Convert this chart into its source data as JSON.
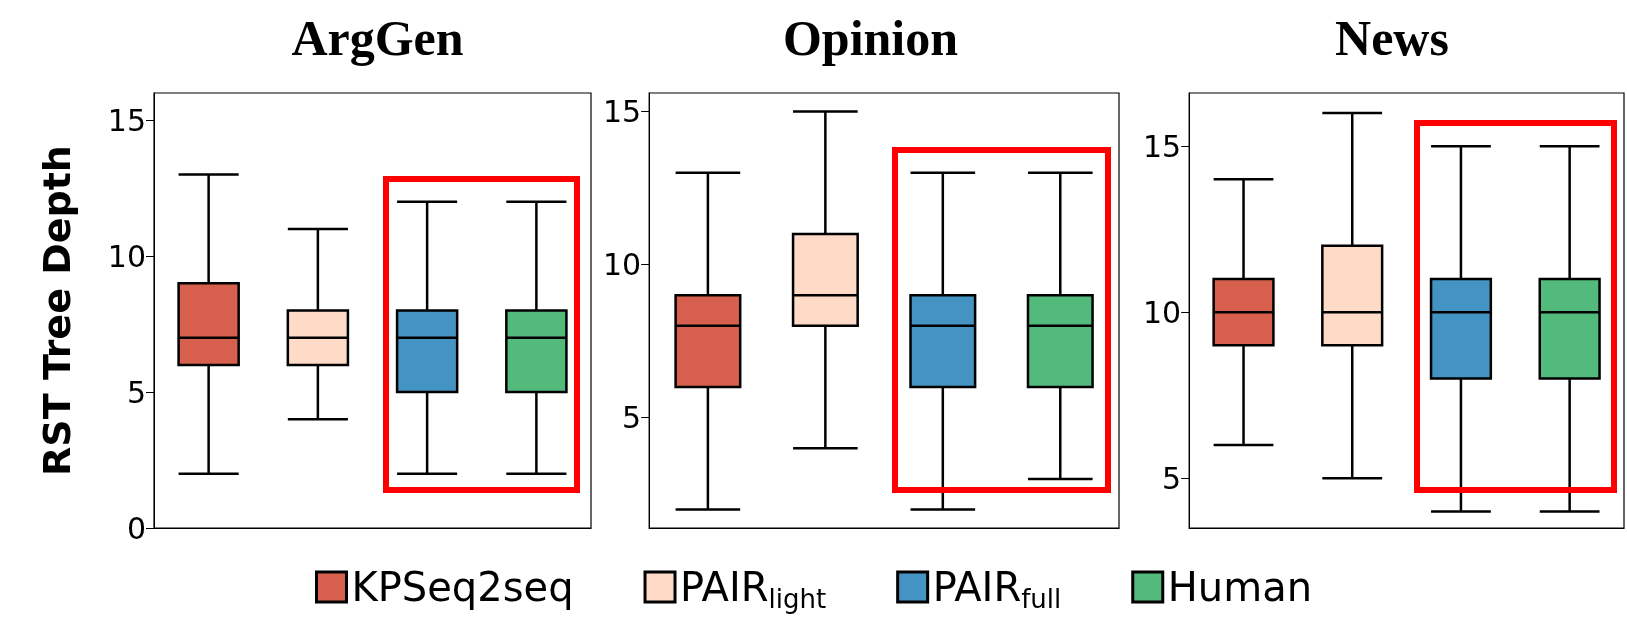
{
  "chart_data": [
    {
      "type": "box",
      "title": "ArgGen",
      "ylabel": "RST Tree Depth",
      "categories": [
        null,
        null,
        null,
        null
      ],
      "ylim": [
        0,
        16
      ],
      "yticks": [
        0,
        5,
        10,
        15
      ],
      "tick_labels": "y",
      "grid": false,
      "legend": "bottom",
      "series": [
        {
          "name": "KPSeq2seq",
          "color": "#d6604d",
          "boxes": [
            {
              "low": 2,
              "q1": 6,
              "median": 7,
              "q3": 9,
              "high": 13
            },
            null,
            null,
            null
          ]
        },
        {
          "name": "PAIR$_{light}$",
          "color": "#fddbc7",
          "boxes": [
            null,
            {
              "low": 4,
              "q1": 6,
              "median": 7,
              "q3": 8,
              "high": 11
            },
            null,
            null
          ]
        },
        {
          "name": "PAIR$_{full}$",
          "color": "#4393c3",
          "boxes": [
            null,
            null,
            {
              "low": 2,
              "q1": 5,
              "median": 7,
              "q3": 8,
              "high": 12
            },
            null
          ]
        },
        {
          "name": "Human",
          "color": "#52bb7c",
          "boxes": [
            null,
            null,
            null,
            {
              "low": 2,
              "q1": 5,
              "median": 7,
              "q3": 8,
              "high": 12
            }
          ]
        }
      ]
    },
    {
      "type": "box",
      "title": "Opinion",
      "categories": [
        null,
        null,
        null,
        null
      ],
      "ylim": [
        1.4,
        15.6
      ],
      "yticks": [
        5,
        10,
        15
      ],
      "tick_labels": "y",
      "grid": false,
      "series": [
        {
          "color": "#d6604d",
          "boxes": [
            {
              "low": 2,
              "q1": 6,
              "median": 8,
              "q3": 9,
              "high": 13
            },
            null,
            null,
            null
          ]
        },
        {
          "color": "#fddbc7",
          "boxes": [
            null,
            {
              "low": 4,
              "q1": 8,
              "median": 9,
              "q3": 11,
              "high": 15
            },
            null,
            null
          ]
        },
        {
          "color": "#4393c3",
          "boxes": [
            null,
            null,
            {
              "low": 2,
              "q1": 6,
              "median": 8,
              "q3": 9,
              "high": 13
            },
            null
          ]
        },
        {
          "color": "#52bb7c",
          "boxes": [
            null,
            null,
            null,
            {
              "low": 3,
              "q1": 6,
              "median": 8,
              "q3": 9,
              "high": 13
            }
          ]
        }
      ]
    },
    {
      "type": "box",
      "title": "News",
      "categories": [
        null,
        null,
        null,
        null
      ],
      "ylim": [
        3.5,
        16.6
      ],
      "yticks": [
        5,
        10,
        15
      ],
      "tick_labels": "y",
      "grid": false,
      "series": [
        {
          "color": "#d6604d",
          "boxes": [
            {
              "low": 6,
              "q1": 9,
              "median": 10,
              "q3": 11,
              "high": 14
            },
            null,
            null,
            null
          ]
        },
        {
          "color": "#fddbc7",
          "boxes": [
            null,
            {
              "low": 5,
              "q1": 9,
              "median": 10,
              "q3": 12,
              "high": 16
            },
            null,
            null
          ]
        },
        {
          "color": "#4393c3",
          "boxes": [
            null,
            null,
            {
              "low": 4,
              "q1": 8,
              "median": 10,
              "q3": 11,
              "high": 15
            },
            null
          ]
        },
        {
          "color": "#52bb7c",
          "boxes": [
            null,
            null,
            null,
            {
              "low": 4,
              "q1": 8,
              "median": 10,
              "q3": 11,
              "high": 15
            }
          ]
        }
      ]
    }
  ]
}
